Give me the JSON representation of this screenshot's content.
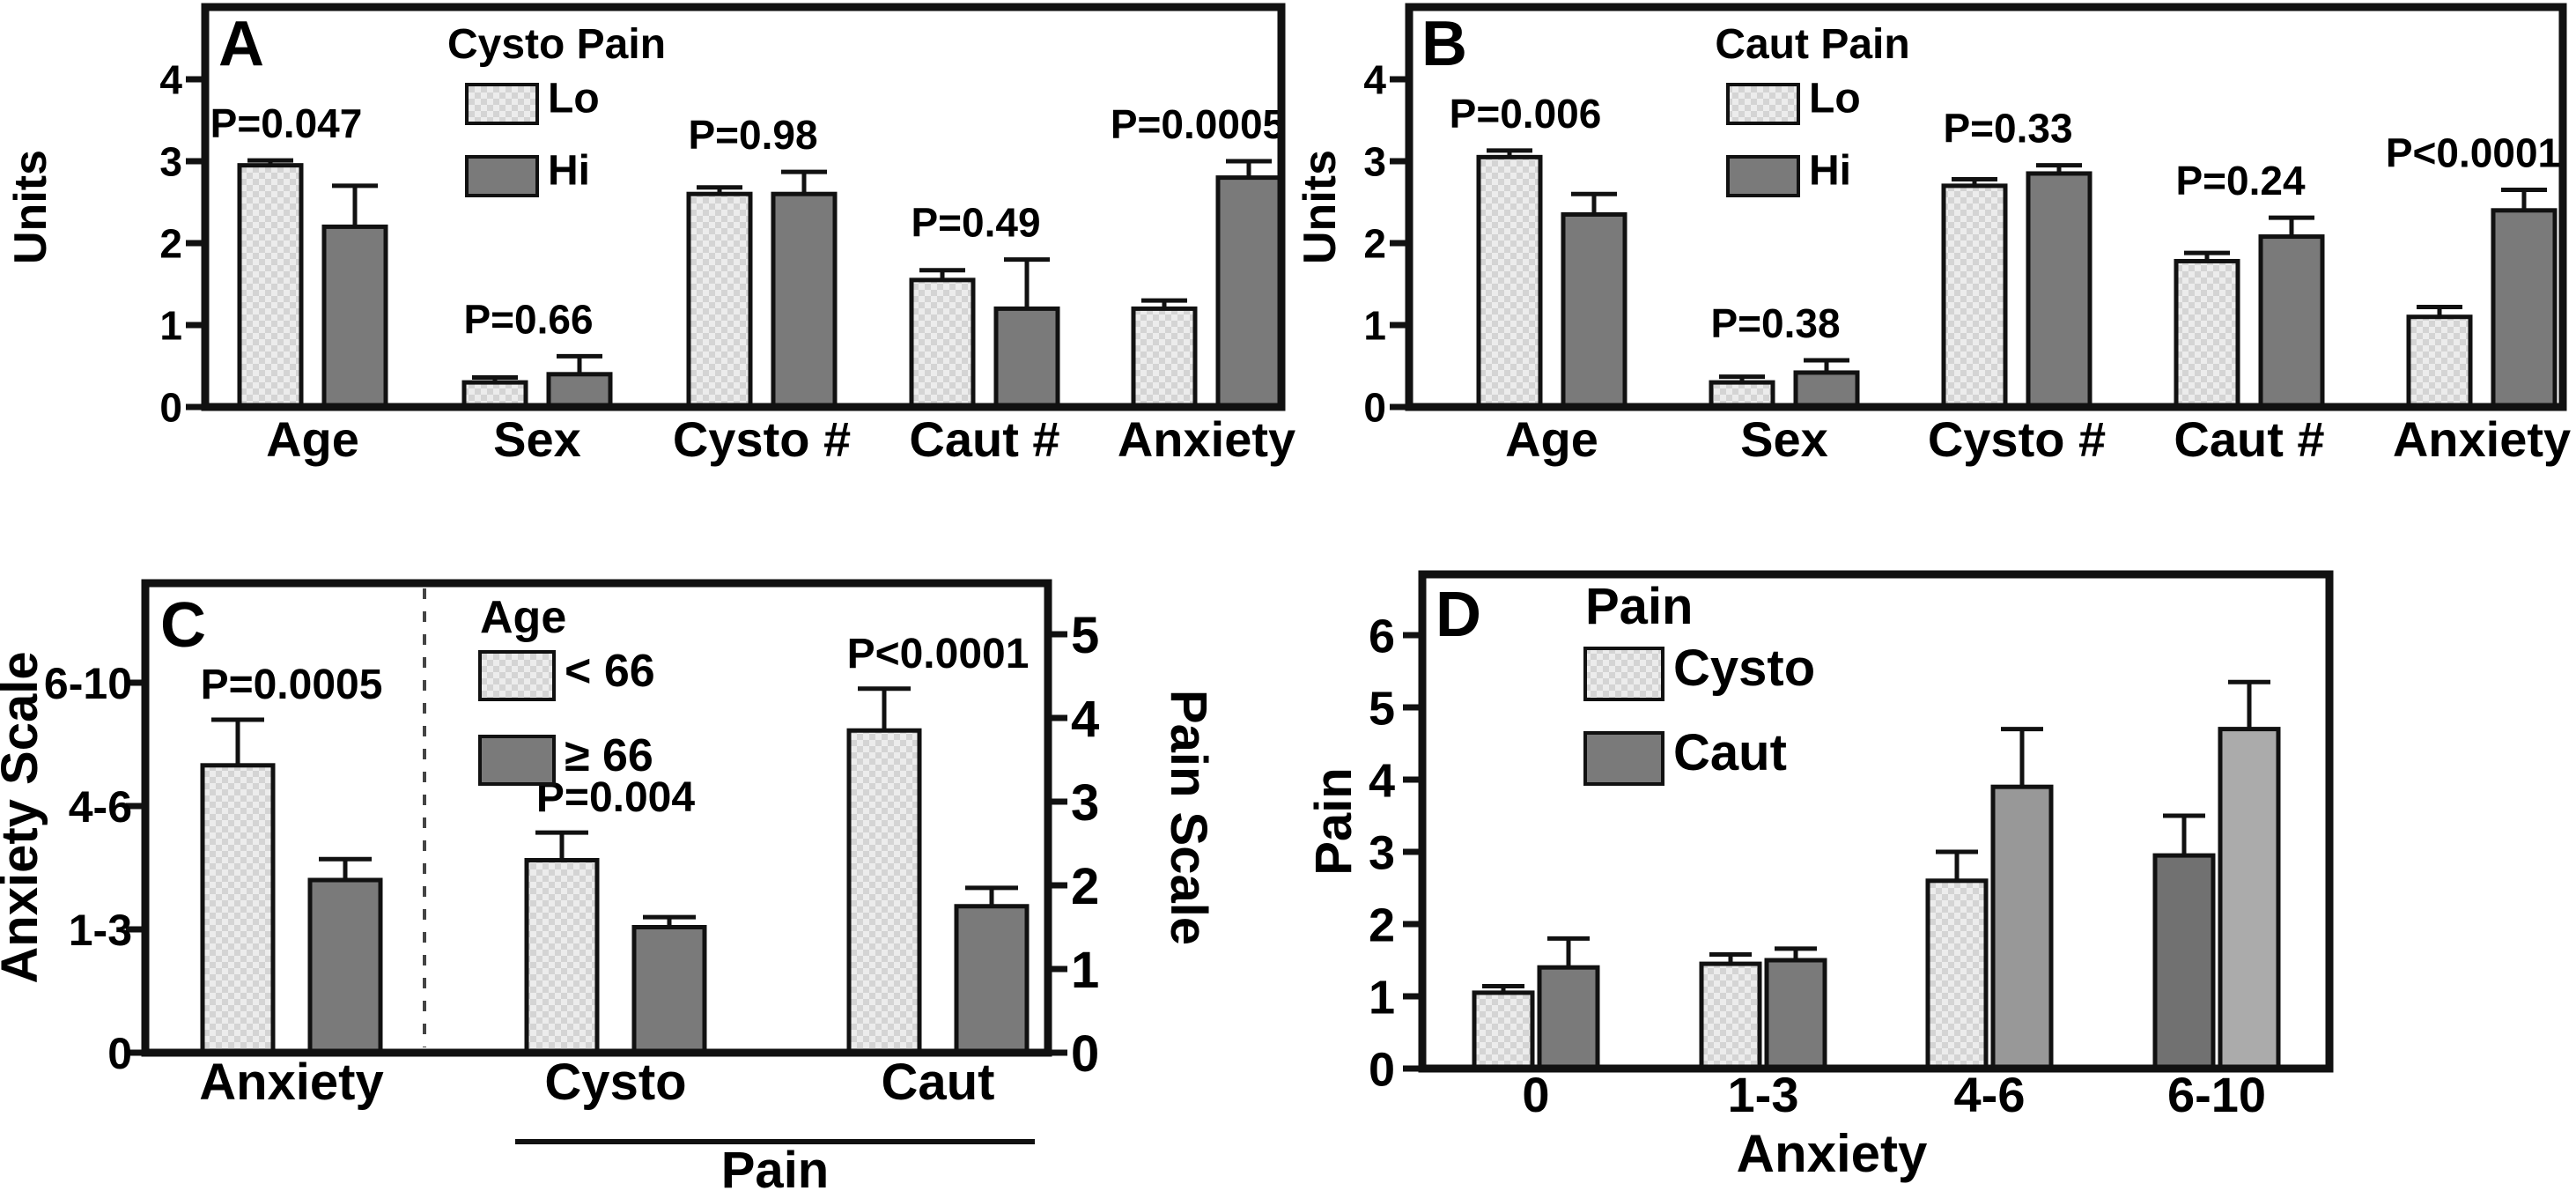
{
  "figure": {
    "background": "#ffffff",
    "text_color": "#000000"
  },
  "colors": {
    "bar_stroke": "#111111",
    "axis_stroke": "#111111",
    "styles": {
      "lo": "hatch",
      "hi": "#7a7a7a",
      "mid": "#989898",
      "dark2": "#717171",
      "light2": "#ababab"
    },
    "hatch_base": "#ececec",
    "hatch_dot": "#d4d4d4"
  },
  "chart_data": [
    {
      "panel": "A",
      "type": "bar",
      "legend": {
        "title": "Cysto Pain",
        "entries": [
          {
            "label": "Lo",
            "style": "lo"
          },
          {
            "label": "Hi",
            "style": "hi"
          }
        ]
      },
      "y_axis": {
        "label": "Units",
        "ticks": [
          "0",
          "1",
          "2",
          "3",
          "4"
        ],
        "max": 4.88
      },
      "categories": [
        "Age",
        "Sex",
        "Cysto #",
        "Caut #",
        "Anxiety"
      ],
      "series": [
        {
          "name": "Lo",
          "style": "lo",
          "values": [
            2.95,
            0.3,
            2.6,
            1.55,
            1.2
          ],
          "errors": [
            0.06,
            0.06,
            0.08,
            0.12,
            0.1
          ]
        },
        {
          "name": "Hi",
          "style": "hi",
          "values": [
            2.2,
            0.4,
            2.6,
            1.2,
            2.8
          ],
          "errors": [
            0.5,
            0.22,
            0.27,
            0.6,
            0.2
          ]
        }
      ],
      "p_labels": [
        "P=0.047",
        "P=0.66",
        "P=0.98",
        "P=0.49",
        "P=0.0005"
      ]
    },
    {
      "panel": "B",
      "type": "bar",
      "legend": {
        "title": "Caut Pain",
        "entries": [
          {
            "label": "Lo",
            "style": "lo"
          },
          {
            "label": "Hi",
            "style": "hi"
          }
        ]
      },
      "y_axis": {
        "label": "Units",
        "ticks": [
          "0",
          "1",
          "2",
          "3",
          "4"
        ],
        "max": 4.88
      },
      "categories": [
        "Age",
        "Sex",
        "Cysto #",
        "Caut #",
        "Anxiety"
      ],
      "series": [
        {
          "name": "Lo",
          "style": "lo",
          "values": [
            3.05,
            0.3,
            2.7,
            1.78,
            1.1
          ],
          "errors": [
            0.08,
            0.07,
            0.08,
            0.1,
            0.12
          ]
        },
        {
          "name": "Hi",
          "style": "hi",
          "values": [
            2.35,
            0.42,
            2.85,
            2.08,
            2.4
          ],
          "errors": [
            0.25,
            0.15,
            0.1,
            0.23,
            0.25
          ]
        }
      ],
      "p_labels": [
        "P=0.006",
        "P=0.38",
        "P=0.33",
        "P=0.24",
        "P<0.0001"
      ]
    },
    {
      "panel": "C",
      "type": "bar-dual-axis",
      "legend": {
        "title": "Age",
        "entries": [
          {
            "label": "< 66",
            "style": "lo"
          },
          {
            "label": "≥ 66",
            "style": "hi"
          }
        ]
      },
      "left_axis": {
        "label": "Anxiety Scale",
        "ticks": [
          "0",
          "1-3",
          "4-6",
          "6-10"
        ]
      },
      "right_axis": {
        "label": "Pain Scale",
        "ticks": [
          "0",
          "1",
          "2",
          "3",
          "4",
          "5"
        ]
      },
      "x_group_label": "Pain",
      "groups": [
        {
          "label": "Anxiety",
          "axis": "left",
          "p": "P=0.0005",
          "values": [
            2.33,
            1.4
          ],
          "errors": [
            0.37,
            0.17
          ]
        },
        {
          "label": "Cysto",
          "axis": "right",
          "p": "P=0.004",
          "values": [
            2.3,
            1.5
          ],
          "errors": [
            0.33,
            0.12
          ]
        },
        {
          "label": "Caut",
          "axis": "right",
          "p": "P<0.0001",
          "values": [
            3.85,
            1.75
          ],
          "errors": [
            0.5,
            0.22
          ]
        }
      ]
    },
    {
      "panel": "D",
      "type": "bar",
      "legend": {
        "title": "Pain",
        "entries": [
          {
            "label": "Cysto",
            "style": "lo"
          },
          {
            "label": "Caut",
            "style": "hi"
          }
        ]
      },
      "y_axis": {
        "label": "Pain",
        "ticks": [
          "0",
          "1",
          "2",
          "3",
          "4",
          "5",
          "6"
        ],
        "max": 6.85
      },
      "x_axis_label": "Anxiety",
      "categories": [
        "0",
        "1-3",
        "4-6",
        "6-10"
      ],
      "series": [
        {
          "name": "Cysto",
          "styles": [
            "lo",
            "lo",
            "lo",
            "dark2"
          ],
          "values": [
            1.05,
            1.45,
            2.6,
            2.95
          ],
          "errors": [
            0.09,
            0.13,
            0.4,
            0.55
          ]
        },
        {
          "name": "Caut",
          "styles": [
            "hi",
            "hi",
            "mid",
            "light2"
          ],
          "values": [
            1.4,
            1.5,
            3.9,
            4.7
          ],
          "errors": [
            0.4,
            0.16,
            0.8,
            0.65
          ]
        }
      ],
      "p_labels": []
    }
  ]
}
